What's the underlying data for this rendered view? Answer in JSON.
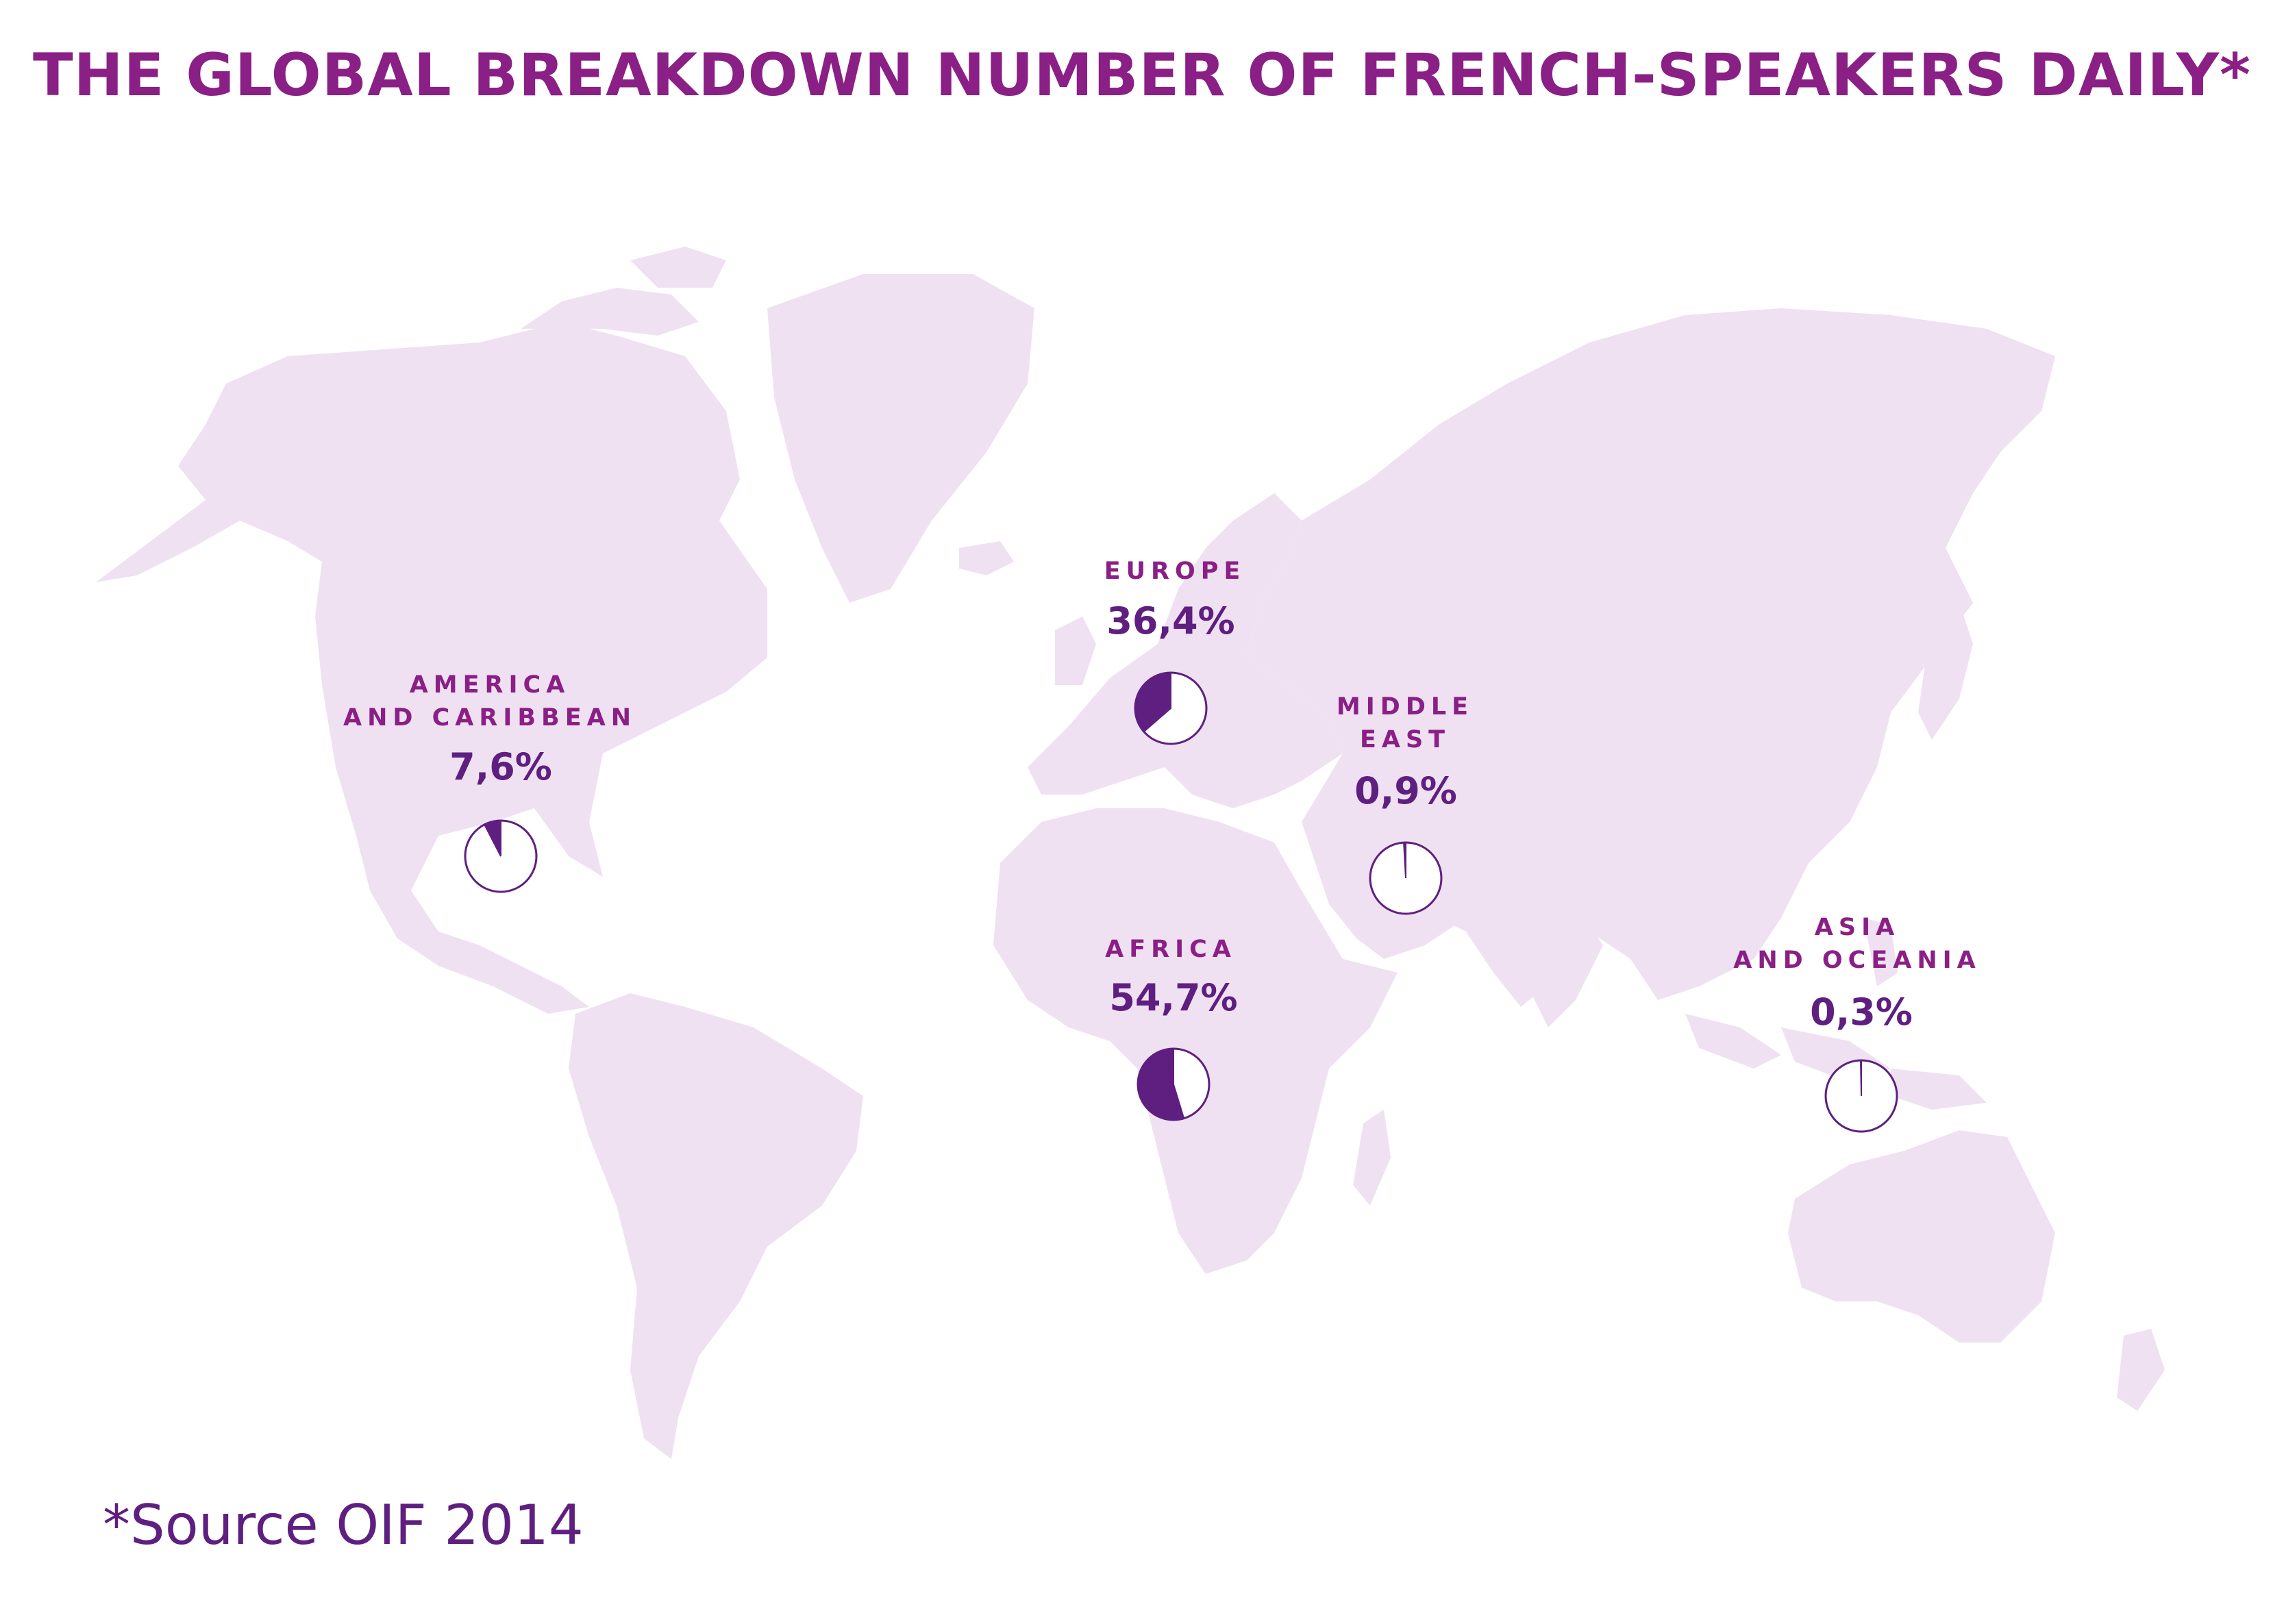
{
  "title": "THE GLOBAL BREAKDOWN NUMBER OF FRENCH-SPEAKERS DAILY*",
  "source": "*Source OIF 2014",
  "colors": {
    "title": "#8a1f86",
    "label": "#8a1f86",
    "value": "#5e1f80",
    "pie_fill": "#5e1f80",
    "land": "#efe1f1"
  },
  "regions": [
    {
      "id": "america",
      "name_lines": [
        "AMERICA",
        "AND CARIBBEAN"
      ],
      "value": "7,6%",
      "share": 7.6
    },
    {
      "id": "europe",
      "name_lines": [
        "EUROPE"
      ],
      "value": "36,4%",
      "share": 36.4
    },
    {
      "id": "middle-east",
      "name_lines": [
        "MIDDLE",
        "EAST"
      ],
      "value": "0,9%",
      "share": 0.9
    },
    {
      "id": "africa",
      "name_lines": [
        "AFRICA"
      ],
      "value": "54,7%",
      "share": 54.7
    },
    {
      "id": "asia-oceania",
      "name_lines": [
        "ASIA",
        "AND OCEANIA"
      ],
      "value": "0,3%",
      "share": 0.3
    }
  ]
}
